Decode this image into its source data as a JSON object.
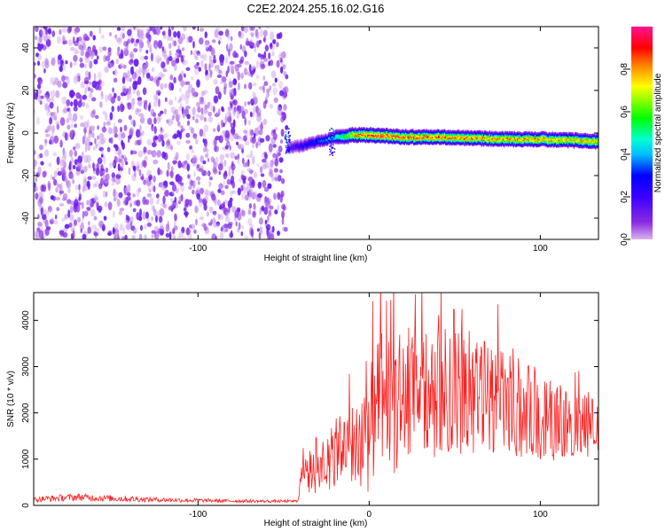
{
  "title": "C2E2.2024.255.16.02.G16",
  "chart_data": [
    {
      "type": "heatmap",
      "xlabel": "Height of straight line (km)",
      "ylabel": "Frequency (Hz)",
      "xlim": [
        -196,
        134
      ],
      "ylim": [
        -50,
        50
      ],
      "xticks": [
        -100,
        0,
        100
      ],
      "yticks": [
        -40,
        -20,
        0,
        20,
        40
      ],
      "colorbar": {
        "label": "Normalized spectral amplitude",
        "range": [
          0,
          1
        ],
        "ticks": [
          0.0,
          0.2,
          0.4,
          0.6,
          0.8
        ],
        "tick_labels": [
          "0.0",
          "0.2",
          "0.4",
          "0.6",
          "0.8"
        ],
        "colormap": [
          "#d8b4ec",
          "#8a2be2",
          "#4000ff",
          "#0000ff",
          "#00ffff",
          "#00ff00",
          "#ffff00",
          "#ff8000",
          "#ff0000",
          "#ff1493"
        ]
      },
      "noise_region": {
        "x_range": [
          -196,
          -48
        ],
        "y_range": [
          -50,
          50
        ],
        "amplitude_range": [
          0.0,
          0.15
        ]
      },
      "signal_track": {
        "x": [
          -48,
          -40,
          -35,
          -30,
          -25,
          -20,
          -15,
          -10,
          0,
          20,
          40,
          60,
          80,
          100,
          120,
          134
        ],
        "y": [
          -7,
          -6,
          -5,
          -4,
          -3,
          -2,
          -2,
          -1,
          -1,
          -2,
          -2,
          -2.5,
          -3,
          -3,
          -3.5,
          -4
        ],
        "peak_amplitude": [
          0.15,
          0.25,
          0.3,
          0.35,
          0.4,
          0.5,
          0.6,
          0.8,
          0.95,
          0.9,
          0.9,
          0.85,
          0.85,
          0.85,
          0.8,
          0.8
        ]
      }
    },
    {
      "type": "line",
      "xlabel": "Height of straight line (km)",
      "ylabel": "SNR (10 * v/v)",
      "xlim": [
        -196,
        134
      ],
      "ylim": [
        0,
        4600
      ],
      "xticks": [
        -100,
        0,
        100
      ],
      "yticks": [
        0,
        1000,
        2000,
        3000,
        4000
      ],
      "color": "#ff2020",
      "series": [
        {
          "x": [
            -196,
            -170,
            -150,
            -120,
            -90,
            -60,
            -42,
            -37,
            -35,
            -30,
            -25,
            -20,
            -15,
            -10,
            -5,
            0,
            5,
            10,
            15,
            20,
            30,
            40,
            50,
            60,
            70,
            80,
            90,
            100,
            110,
            120,
            134
          ],
          "y": [
            130,
            180,
            150,
            120,
            100,
            90,
            90,
            1150,
            700,
            900,
            1000,
            1150,
            1300,
            1450,
            1500,
            1700,
            2000,
            2200,
            2300,
            2350,
            2400,
            2500,
            2500,
            2450,
            2350,
            2200,
            2100,
            1950,
            1850,
            1800,
            1700
          ],
          "spread": [
            60,
            80,
            70,
            50,
            40,
            30,
            30,
            600,
            500,
            600,
            650,
            700,
            750,
            900,
            1100,
            1300,
            1500,
            1600,
            1500,
            1400,
            1350,
            1300,
            1300,
            1250,
            1200,
            1100,
            1000,
            900,
            800,
            700,
            600
          ]
        }
      ]
    }
  ]
}
